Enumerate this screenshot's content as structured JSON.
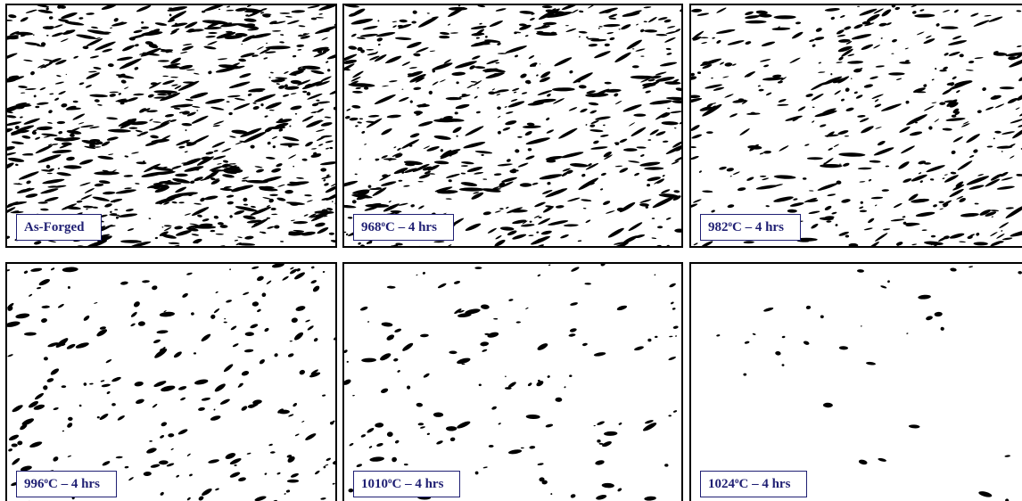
{
  "panels": [
    {
      "label_parts": [
        "As-Forged"
      ]
    },
    {
      "label_parts": [
        "968",
        "o",
        "C – 4 hrs"
      ]
    },
    {
      "label_parts": [
        "982",
        "o",
        "C – 4 hrs"
      ]
    },
    {
      "label_parts": [
        "996",
        "o",
        "C – 4 hrs"
      ]
    },
    {
      "label_parts": [
        "1010",
        "o",
        "C – 4 hrs"
      ]
    },
    {
      "label_parts": [
        "1024",
        "o",
        "C – 4 hrs"
      ]
    }
  ]
}
